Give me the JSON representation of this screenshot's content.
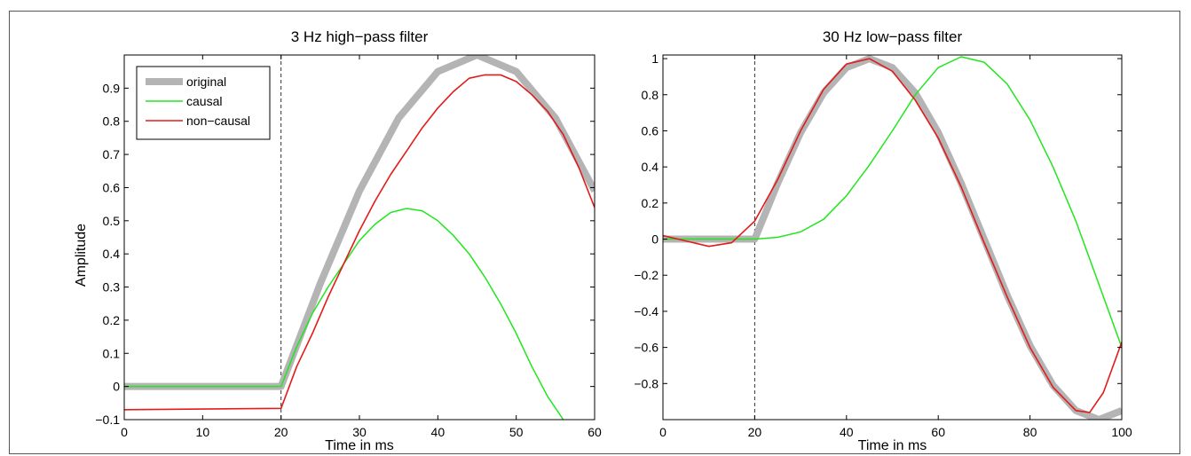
{
  "chart_data": [
    {
      "type": "line",
      "title": "3 Hz high−pass filter",
      "xlabel": "Time in ms",
      "ylabel": "Amplitude",
      "xlim": [
        0,
        60
      ],
      "ylim": [
        -0.1,
        1.0
      ],
      "x_ticks": [
        "0",
        "10",
        "20",
        "30",
        "40",
        "50",
        "60"
      ],
      "y_ticks": [
        "−0.1",
        "0",
        "0.1",
        "0.2",
        "0.3",
        "0.4",
        "0.5",
        "0.6",
        "0.7",
        "0.8",
        "0.9"
      ],
      "y_tick_values": [
        -0.1,
        0,
        0.1,
        0.2,
        0.3,
        0.4,
        0.5,
        0.6,
        0.7,
        0.8,
        0.9
      ],
      "vline_x": 20,
      "legend": {
        "placement": "top-left",
        "entries": [
          "original",
          "causal",
          "non−causal"
        ]
      },
      "series": [
        {
          "name": "original",
          "color": "#b4b4b4",
          "x": [
            0,
            20,
            25,
            30,
            35,
            40,
            45,
            50,
            55,
            60
          ],
          "y": [
            0,
            0,
            0.31,
            0.59,
            0.81,
            0.95,
            1.0,
            0.95,
            0.81,
            0.59
          ]
        },
        {
          "name": "causal",
          "color": "#22e61e",
          "x": [
            0,
            20,
            22,
            24,
            26,
            28,
            30,
            32,
            34,
            36,
            38,
            40,
            42,
            44,
            46,
            48,
            50,
            52,
            54,
            56
          ],
          "y": [
            0,
            0,
            0.12,
            0.22,
            0.3,
            0.37,
            0.44,
            0.49,
            0.525,
            0.537,
            0.53,
            0.5,
            0.455,
            0.4,
            0.33,
            0.25,
            0.16,
            0.06,
            -0.03,
            -0.1
          ]
        },
        {
          "name": "non−causal",
          "color": "#e21b1b",
          "x": [
            0,
            20,
            22,
            24,
            26,
            28,
            30,
            32,
            34,
            36,
            38,
            40,
            42,
            44,
            46,
            48,
            50,
            52,
            54,
            56,
            58,
            60
          ],
          "y": [
            -0.07,
            -0.066,
            0.06,
            0.16,
            0.27,
            0.37,
            0.47,
            0.56,
            0.64,
            0.71,
            0.78,
            0.84,
            0.89,
            0.93,
            0.94,
            0.94,
            0.92,
            0.88,
            0.83,
            0.76,
            0.66,
            0.54
          ]
        }
      ]
    },
    {
      "type": "line",
      "title": "30 Hz low−pass filter",
      "xlabel": "Time in ms",
      "ylabel": "",
      "xlim": [
        0,
        100
      ],
      "ylim": [
        -1.0,
        1.02
      ],
      "x_ticks": [
        "0",
        "20",
        "40",
        "60",
        "80",
        "100"
      ],
      "y_ticks": [
        "−0.8",
        "−0.6",
        "−0.4",
        "−0.2",
        "0",
        "0.2",
        "0.4",
        "0.6",
        "0.8",
        "1"
      ],
      "y_tick_values": [
        -0.8,
        -0.6,
        -0.4,
        -0.2,
        0,
        0.2,
        0.4,
        0.6,
        0.8,
        1
      ],
      "vline_x": 20,
      "series": [
        {
          "name": "original",
          "color": "#b4b4b4",
          "x": [
            0,
            20,
            25,
            30,
            35,
            40,
            45,
            50,
            55,
            60,
            65,
            70,
            75,
            80,
            85,
            90,
            95,
            100
          ],
          "y": [
            0,
            0,
            0.31,
            0.59,
            0.81,
            0.95,
            1.0,
            0.95,
            0.81,
            0.59,
            0.31,
            0.0,
            -0.31,
            -0.59,
            -0.81,
            -0.95,
            -1.0,
            -0.95
          ]
        },
        {
          "name": "causal",
          "color": "#22e61e",
          "x": [
            0,
            20,
            25,
            30,
            35,
            40,
            45,
            50,
            55,
            60,
            65,
            70,
            75,
            80,
            85,
            90,
            95,
            100
          ],
          "y": [
            0,
            0,
            0.01,
            0.04,
            0.11,
            0.24,
            0.41,
            0.6,
            0.8,
            0.95,
            1.01,
            0.98,
            0.86,
            0.66,
            0.4,
            0.1,
            -0.25,
            -0.6
          ]
        },
        {
          "name": "non−causal",
          "color": "#e21b1b",
          "x": [
            0,
            5,
            10,
            15,
            20,
            25,
            30,
            35,
            40,
            45,
            50,
            55,
            60,
            65,
            70,
            75,
            80,
            85,
            90,
            93,
            96,
            100
          ],
          "y": [
            0.02,
            -0.01,
            -0.04,
            -0.02,
            0.1,
            0.33,
            0.6,
            0.83,
            0.97,
            1.0,
            0.93,
            0.77,
            0.56,
            0.29,
            -0.02,
            -0.32,
            -0.6,
            -0.82,
            -0.95,
            -0.96,
            -0.85,
            -0.57
          ]
        }
      ]
    }
  ]
}
